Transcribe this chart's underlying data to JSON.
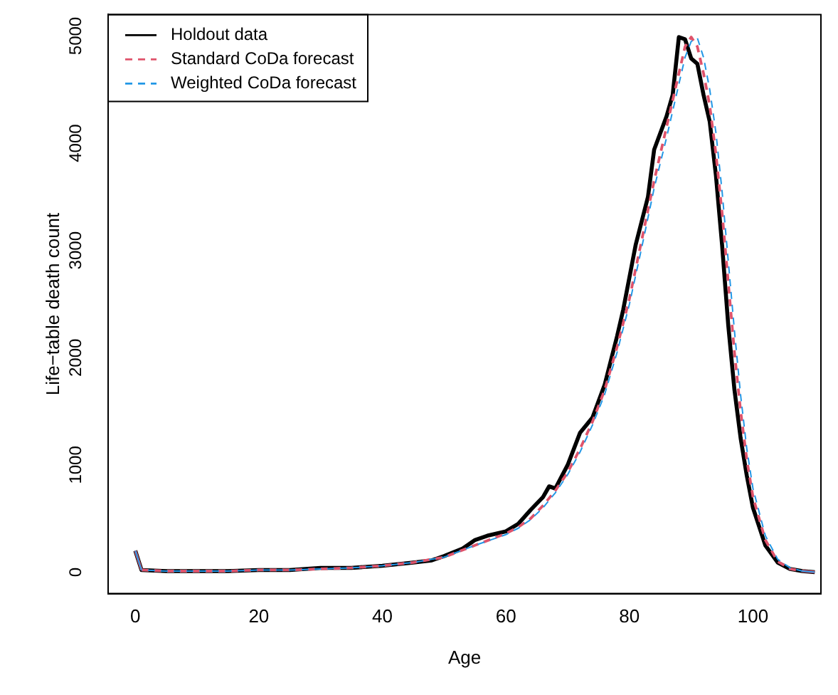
{
  "chart_data": {
    "type": "line",
    "xlabel": "Age",
    "ylabel": "Life−table death count",
    "xlim": [
      -4.4,
      111
    ],
    "ylim": [
      -200,
      5200
    ],
    "xticks": [
      0,
      20,
      40,
      60,
      80,
      100
    ],
    "yticks": [
      0,
      1000,
      2000,
      3000,
      4000,
      5000
    ],
    "legend": "top left",
    "grid": false,
    "marker": "none",
    "series": [
      {
        "name": "Holdout data",
        "color": "#000000",
        "line_style": "solid",
        "x": [
          0,
          1,
          5,
          10,
          15,
          20,
          25,
          30,
          35,
          40,
          45,
          48,
          50,
          53,
          55,
          57,
          60,
          62,
          64,
          66,
          67,
          68,
          70,
          72,
          74,
          76,
          78,
          79,
          81,
          83,
          84,
          86,
          87,
          88,
          89,
          90,
          91,
          92,
          93,
          94,
          95,
          96,
          97,
          98,
          99,
          100,
          102,
          104,
          106,
          108,
          110
        ],
        "values": [
          200,
          20,
          10,
          10,
          10,
          20,
          20,
          40,
          40,
          60,
          90,
          110,
          150,
          220,
          300,
          340,
          380,
          450,
          580,
          700,
          800,
          780,
          1000,
          1300,
          1440,
          1750,
          2200,
          2450,
          3050,
          3500,
          3940,
          4250,
          4450,
          4990,
          4970,
          4790,
          4740,
          4450,
          4200,
          3700,
          3050,
          2300,
          1700,
          1250,
          900,
          600,
          250,
          90,
          30,
          10,
          0
        ]
      },
      {
        "name": "Standard CoDa forecast",
        "color": "#df536b",
        "line_style": "dashed",
        "x": [
          0,
          1,
          5,
          10,
          15,
          20,
          25,
          30,
          35,
          40,
          45,
          50,
          55,
          60,
          62,
          64,
          66,
          68,
          70,
          72,
          74,
          76,
          78,
          80,
          82,
          84,
          86,
          88,
          89,
          90,
          91,
          92,
          93,
          94,
          95,
          96,
          97,
          98,
          99,
          100,
          102,
          104,
          106,
          108,
          110
        ],
        "values": [
          200,
          20,
          10,
          10,
          10,
          20,
          20,
          30,
          40,
          60,
          90,
          140,
          250,
          360,
          420,
          500,
          620,
          760,
          930,
          1150,
          1400,
          1700,
          2100,
          2550,
          3100,
          3650,
          4150,
          4650,
          4900,
          4990,
          4900,
          4650,
          4350,
          3900,
          3350,
          2700,
          2050,
          1500,
          1050,
          700,
          300,
          100,
          30,
          10,
          0
        ]
      },
      {
        "name": "Weighted CoDa forecast",
        "color": "#2297e6",
        "line_style": "dashed",
        "x": [
          0,
          1,
          5,
          10,
          15,
          20,
          25,
          30,
          35,
          40,
          45,
          50,
          55,
          60,
          62,
          64,
          66,
          68,
          70,
          72,
          74,
          76,
          78,
          80,
          82,
          84,
          86,
          88,
          89,
          90,
          91,
          92,
          93,
          94,
          95,
          96,
          97,
          98,
          99,
          100,
          102,
          104,
          106,
          108,
          110
        ],
        "values": [
          200,
          20,
          10,
          10,
          10,
          20,
          20,
          30,
          40,
          60,
          90,
          140,
          250,
          350,
          410,
          490,
          600,
          740,
          910,
          1120,
          1370,
          1660,
          2050,
          2500,
          3030,
          3580,
          4050,
          4550,
          4800,
          4950,
          4980,
          4800,
          4500,
          4100,
          3550,
          2900,
          2250,
          1650,
          1150,
          780,
          340,
          120,
          40,
          10,
          0
        ]
      }
    ]
  }
}
